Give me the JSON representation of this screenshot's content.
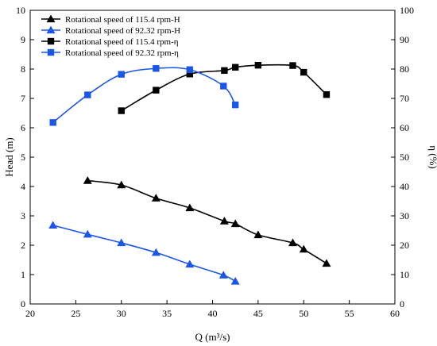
{
  "chart_data": {
    "type": "line",
    "xlabel": "Q (m³/s)",
    "ylabel_left": "Head (m)",
    "ylabel_right": "η (%)",
    "xlim": [
      20,
      60
    ],
    "ylim_left": [
      0,
      10
    ],
    "ylim_right": [
      0,
      100
    ],
    "x_ticks": [
      "20",
      "25",
      "30",
      "35",
      "40",
      "45",
      "50",
      "55",
      "60"
    ],
    "y_left_ticks": [
      "0",
      "1",
      "2",
      "3",
      "4",
      "5",
      "6",
      "7",
      "8",
      "9",
      "10"
    ],
    "y_right_ticks": [
      "0",
      "10",
      "20",
      "30",
      "40",
      "50",
      "60",
      "70",
      "80",
      "90",
      "100"
    ],
    "grid": false,
    "legend_position": "top-left",
    "series": [
      {
        "name": "Rotational speed of 115.4 rpm-H",
        "axis": "left",
        "marker": "triangle",
        "color": "#000000",
        "x": [
          26.3,
          30.0,
          33.8,
          37.5,
          41.3,
          42.5,
          45.0,
          48.8,
          50.0,
          52.5
        ],
        "y": [
          4.2,
          4.05,
          3.6,
          3.27,
          2.82,
          2.73,
          2.35,
          2.08,
          1.86,
          1.38
        ]
      },
      {
        "name": "Rotational speed of 92.32 rpm-H",
        "axis": "left",
        "marker": "triangle",
        "color": "#1a56e8",
        "x": [
          22.5,
          26.3,
          30.0,
          33.8,
          37.5,
          41.2,
          42.5
        ],
        "y": [
          2.68,
          2.37,
          2.08,
          1.75,
          1.35,
          0.98,
          0.77
        ]
      },
      {
        "name": "Rotational speed of 115.4 rpm-η",
        "axis": "right",
        "marker": "square",
        "color": "#000000",
        "x": [
          30.0,
          33.8,
          37.5,
          41.3,
          42.5,
          45.0,
          48.8,
          50.0,
          52.5
        ],
        "y": [
          65.8,
          72.8,
          78.3,
          79.5,
          80.6,
          81.3,
          81.2,
          78.9,
          71.3
        ]
      },
      {
        "name": "Rotational speed of 92.32 rpm-η",
        "axis": "right",
        "marker": "square",
        "color": "#1a56e8",
        "x": [
          22.5,
          26.3,
          30.0,
          33.8,
          37.5,
          41.2,
          42.5
        ],
        "y": [
          61.8,
          71.2,
          78.2,
          80.2,
          79.8,
          74.2,
          67.8
        ]
      }
    ]
  }
}
